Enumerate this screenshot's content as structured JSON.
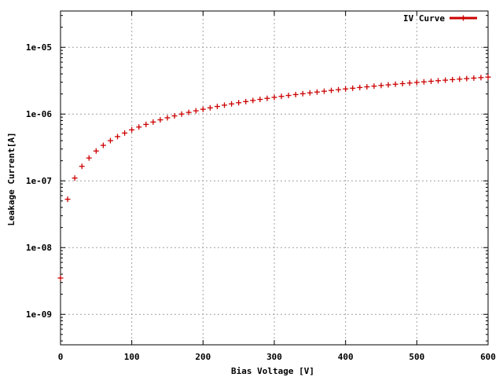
{
  "chart_data": {
    "type": "scatter",
    "title": "",
    "xlabel": "Bias Voltage [V]",
    "ylabel": "Leakage Current[A]",
    "xlim": [
      0,
      600
    ],
    "ylim": [
      3.5e-10,
      3.5e-05
    ],
    "y_scale": "log",
    "grid": true,
    "legend_position": "top-right",
    "x_ticks": [
      {
        "value": 0,
        "label": "0"
      },
      {
        "value": 100,
        "label": "100"
      },
      {
        "value": 200,
        "label": "200"
      },
      {
        "value": 300,
        "label": "300"
      },
      {
        "value": 400,
        "label": "400"
      },
      {
        "value": 500,
        "label": "500"
      },
      {
        "value": 600,
        "label": "600"
      }
    ],
    "y_ticks": [
      {
        "value": 1e-09,
        "label": "1e-09"
      },
      {
        "value": 1e-08,
        "label": "1e-08"
      },
      {
        "value": 1e-07,
        "label": "1e-07"
      },
      {
        "value": 1e-06,
        "label": "1e-06"
      },
      {
        "value": 1e-05,
        "label": "1e-05"
      }
    ],
    "series": [
      {
        "name": "IV Curve",
        "color": "#cc0000",
        "marker": "plus",
        "x": [
          0,
          10,
          20,
          30,
          40,
          50,
          60,
          70,
          80,
          90,
          100,
          110,
          120,
          130,
          140,
          150,
          160,
          170,
          180,
          190,
          200,
          210,
          220,
          230,
          240,
          250,
          260,
          270,
          280,
          290,
          300,
          310,
          320,
          330,
          340,
          350,
          360,
          370,
          380,
          390,
          400,
          410,
          420,
          430,
          440,
          450,
          460,
          470,
          480,
          490,
          500,
          510,
          520,
          530,
          540,
          550,
          560,
          570,
          580,
          590,
          600
        ],
        "y": [
          3.5e-09,
          5.3e-08,
          1.1e-07,
          1.65e-07,
          2.2e-07,
          2.8e-07,
          3.4e-07,
          4e-07,
          4.6e-07,
          5.2e-07,
          5.8e-07,
          6.4e-07,
          7e-07,
          7.6e-07,
          8.2e-07,
          8.8e-07,
          9.4e-07,
          1e-06,
          1.06e-06,
          1.12e-06,
          1.18e-06,
          1.24e-06,
          1.3e-06,
          1.36e-06,
          1.42e-06,
          1.48e-06,
          1.54e-06,
          1.6e-06,
          1.66e-06,
          1.72e-06,
          1.78e-06,
          1.84e-06,
          1.9e-06,
          1.96e-06,
          2.02e-06,
          2.08e-06,
          2.14e-06,
          2.2e-06,
          2.26e-06,
          2.32e-06,
          2.38e-06,
          2.44e-06,
          2.5e-06,
          2.56e-06,
          2.62e-06,
          2.68e-06,
          2.74e-06,
          2.8e-06,
          2.86e-06,
          2.92e-06,
          2.98e-06,
          3.04e-06,
          3.1e-06,
          3.16e-06,
          3.22e-06,
          3.28e-06,
          3.34e-06,
          3.4e-06,
          3.46e-06,
          3.52e-06,
          3.58e-06
        ]
      }
    ]
  }
}
